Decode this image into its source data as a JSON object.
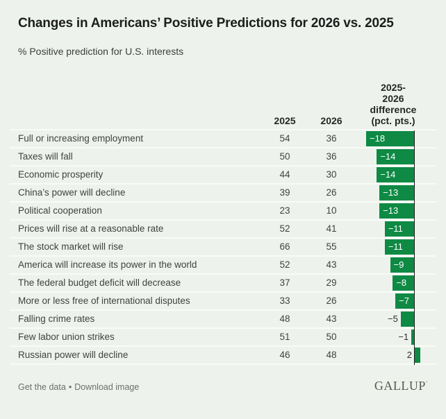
{
  "header": {
    "title": "Changes in Americans’ Positive Predictions for 2026 vs. 2025",
    "subtitle": "% Positive prediction for U.S. interests"
  },
  "table": {
    "columns": {
      "c2025": "2025",
      "c2026": "2026",
      "cdiff": "2025-\n2026\ndifference\n(pct. pts.)"
    },
    "rows": [
      {
        "label": "Full or increasing employment",
        "y2025": "54",
        "y2026": "36",
        "diff": -18,
        "diff_label": "−18"
      },
      {
        "label": "Taxes will fall",
        "y2025": "50",
        "y2026": "36",
        "diff": -14,
        "diff_label": "−14"
      },
      {
        "label": "Economic prosperity",
        "y2025": "44",
        "y2026": "30",
        "diff": -14,
        "diff_label": "−14"
      },
      {
        "label": "China’s power will decline",
        "y2025": "39",
        "y2026": "26",
        "diff": -13,
        "diff_label": "−13"
      },
      {
        "label": "Political cooperation",
        "y2025": "23",
        "y2026": "10",
        "diff": -13,
        "diff_label": "−13"
      },
      {
        "label": "Prices will rise at a reasonable rate",
        "y2025": "52",
        "y2026": "41",
        "diff": -11,
        "diff_label": "−11"
      },
      {
        "label": "The stock market will rise",
        "y2025": "66",
        "y2026": "55",
        "diff": -11,
        "diff_label": "−11"
      },
      {
        "label": "America will increase its power in the world",
        "y2025": "52",
        "y2026": "43",
        "diff": -9,
        "diff_label": "−9"
      },
      {
        "label": "The federal budget deficit will decrease",
        "y2025": "37",
        "y2026": "29",
        "diff": -8,
        "diff_label": "−8"
      },
      {
        "label": "More or less free of international disputes",
        "y2025": "33",
        "y2026": "26",
        "diff": -7,
        "diff_label": "−7"
      },
      {
        "label": "Falling crime rates",
        "y2025": "48",
        "y2026": "43",
        "diff": -5,
        "diff_label": "−5"
      },
      {
        "label": "Few labor union strikes",
        "y2025": "51",
        "y2026": "50",
        "diff": -1,
        "diff_label": "−1"
      },
      {
        "label": "Russian power will decline",
        "y2025": "46",
        "y2026": "48",
        "diff": 2,
        "diff_label": "2"
      }
    ]
  },
  "chart_data": {
    "type": "bar",
    "title": "Changes in Americans’ Positive Predictions for 2026 vs. 2025",
    "subtitle": "% Positive prediction for U.S. interests",
    "categories": [
      "Full or increasing employment",
      "Taxes will fall",
      "Economic prosperity",
      "China’s power will decline",
      "Political cooperation",
      "Prices will rise at a reasonable rate",
      "The stock market will rise",
      "America will increase its power in the world",
      "The federal budget deficit will decrease",
      "More or less free of international disputes",
      "Falling crime rates",
      "Few labor union strikes",
      "Russian power will decline"
    ],
    "series": [
      {
        "name": "2025",
        "values": [
          54,
          50,
          44,
          39,
          23,
          52,
          66,
          52,
          37,
          33,
          48,
          51,
          46
        ]
      },
      {
        "name": "2026",
        "values": [
          36,
          36,
          30,
          26,
          10,
          41,
          55,
          43,
          29,
          26,
          43,
          50,
          48
        ]
      },
      {
        "name": "2025-2026 difference (pct. pts.)",
        "values": [
          -18,
          -14,
          -14,
          -13,
          -13,
          -11,
          -11,
          -9,
          -8,
          -7,
          -5,
          -1,
          2
        ]
      }
    ],
    "orientation": "horizontal",
    "xlim": [
      -18,
      2
    ],
    "grid": false,
    "legend_position": "none",
    "bar_color": "#0e8a44"
  },
  "footer": {
    "link_get_data": "Get the data",
    "separator": "•",
    "link_download": "Download image",
    "logo": "GALLUP",
    "logo_mark": "’"
  },
  "colors": {
    "background": "#edf3ec",
    "bar_green": "#0e8a44",
    "zero_line": "#1c1c1c",
    "row_separator": "#f8fbf6"
  }
}
